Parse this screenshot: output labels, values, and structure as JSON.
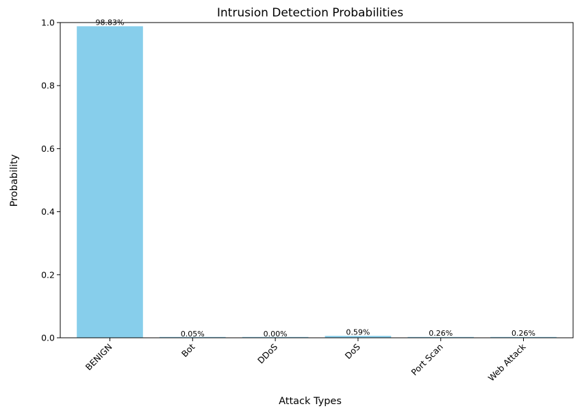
{
  "chart_data": {
    "type": "bar",
    "title": "Intrusion Detection Probabilities",
    "xlabel": "Attack Types",
    "ylabel": "Probability",
    "categories": [
      "BENIGN",
      "Bot",
      "DDoS",
      "DoS",
      "Port Scan",
      "Web Attack"
    ],
    "values": [
      0.9883,
      0.0005,
      0.0,
      0.0059,
      0.0026,
      0.0026
    ],
    "data_labels": [
      "98.83%",
      "0.05%",
      "0.00%",
      "0.59%",
      "0.26%",
      "0.26%"
    ],
    "ylim": [
      0,
      1.0
    ],
    "yticks": [
      0.0,
      0.2,
      0.4,
      0.6,
      0.8,
      1.0
    ],
    "ytick_labels": [
      "0.0",
      "0.2",
      "0.4",
      "0.6",
      "0.8",
      "1.0"
    ],
    "grid": false,
    "bar_color": "#87CEEB"
  }
}
